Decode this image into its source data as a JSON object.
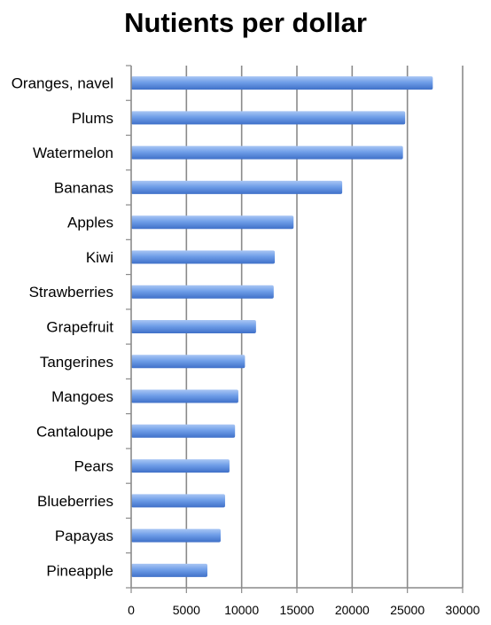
{
  "chart_data": {
    "type": "bar",
    "orientation": "horizontal",
    "title": "Nutients per dollar",
    "xlabel": "",
    "ylabel": "",
    "categories": [
      "Oranges, navel",
      "Plums",
      "Watermelon",
      "Bananas",
      "Apples",
      "Kiwi",
      "Strawberries",
      "Grapefruit",
      "Tangerines",
      "Mangoes",
      "Cantaloupe",
      "Pears",
      "Blueberries",
      "Papayas",
      "Pineapple"
    ],
    "values": [
      27300,
      24800,
      24600,
      19100,
      14700,
      13000,
      12900,
      11300,
      10300,
      9700,
      9400,
      8900,
      8500,
      8100,
      6900
    ],
    "xlim": [
      0,
      30000
    ],
    "xticks": [
      0,
      5000,
      10000,
      15000,
      20000,
      25000,
      30000
    ],
    "xtick_labels": [
      "0",
      "5000",
      "10000",
      "15000",
      "20000",
      "25000",
      "30000"
    ],
    "grid": "vertical",
    "legend": "none",
    "bar_color": "#6f9ee8"
  }
}
